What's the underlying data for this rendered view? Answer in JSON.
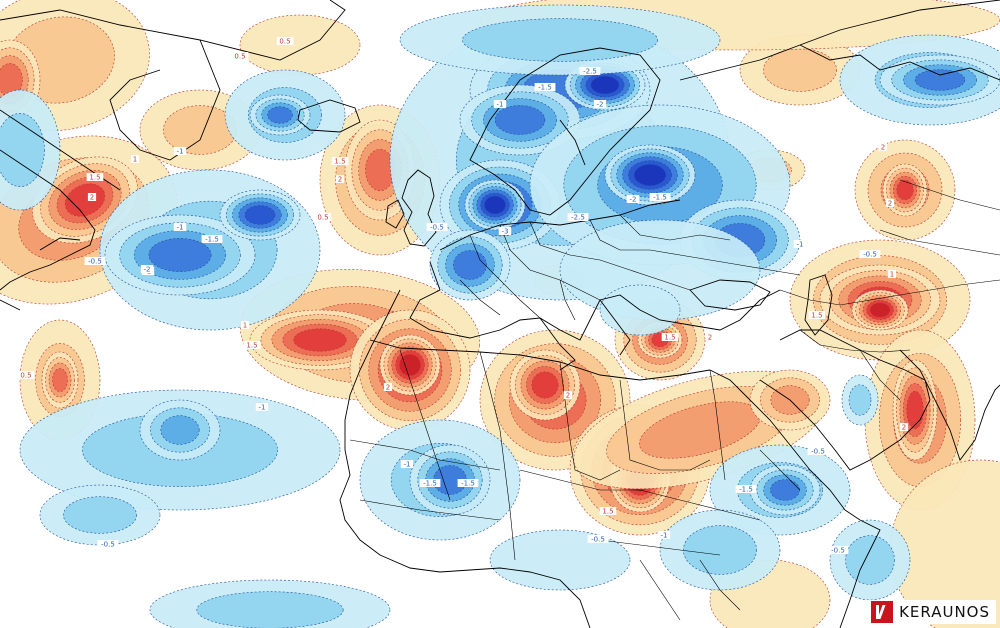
{
  "brand": {
    "name": "KERAUNOS"
  },
  "colors": {
    "pos_05": "#fbe7b8",
    "pos_1": "#f8c690",
    "pos_15": "#f29a6c",
    "pos_2": "#ec6a52",
    "pos_25": "#e13a39",
    "pos_3": "#c92028",
    "neg_05": "#c8ecf7",
    "neg_1": "#8fd2ef",
    "neg_15": "#58a9e6",
    "neg_2": "#3d78dc",
    "neg_25": "#2755cf",
    "neg_3": "#1a33b8",
    "contour_pos": "#b5352d",
    "contour_neg": "#1f4e9a",
    "label_pos": "#c03d35",
    "label_neg": "#2f62b0"
  },
  "contour_labels": [
    {
      "text": "0.5",
      "sign": "pos"
    },
    {
      "text": "1",
      "sign": "pos"
    },
    {
      "text": "1.5",
      "sign": "pos"
    },
    {
      "text": "2",
      "sign": "pos"
    },
    {
      "text": "-1",
      "sign": "neg"
    },
    {
      "text": "-1.5",
      "sign": "neg"
    },
    {
      "text": "-2",
      "sign": "neg"
    },
    {
      "text": "-0.5",
      "sign": "neg"
    },
    {
      "text": "1.5",
      "sign": "pos"
    },
    {
      "text": "2",
      "sign": "pos"
    },
    {
      "text": "0.5",
      "sign": "pos"
    },
    {
      "text": "-0.5",
      "sign": "neg"
    },
    {
      "text": "-1",
      "sign": "neg"
    },
    {
      "text": "-1.5",
      "sign": "neg"
    },
    {
      "text": "-2",
      "sign": "neg"
    },
    {
      "text": "-2.5",
      "sign": "neg"
    },
    {
      "text": "-3",
      "sign": "neg"
    },
    {
      "text": "-2.5",
      "sign": "neg"
    },
    {
      "text": "-2",
      "sign": "neg"
    },
    {
      "text": "-1.5",
      "sign": "neg"
    },
    {
      "text": "-1",
      "sign": "neg"
    },
    {
      "text": "-0.5",
      "sign": "neg"
    },
    {
      "text": "1",
      "sign": "pos"
    },
    {
      "text": "1.5",
      "sign": "pos"
    },
    {
      "text": "2",
      "sign": "pos"
    },
    {
      "text": "2",
      "sign": "pos"
    },
    {
      "text": "1.5",
      "sign": "pos"
    },
    {
      "text": "0.5",
      "sign": "pos"
    },
    {
      "text": "1",
      "sign": "pos"
    },
    {
      "text": "1.5",
      "sign": "pos"
    },
    {
      "text": "2",
      "sign": "pos"
    },
    {
      "text": "2",
      "sign": "pos"
    },
    {
      "text": "2",
      "sign": "pos"
    },
    {
      "text": "-1",
      "sign": "neg"
    },
    {
      "text": "-1",
      "sign": "neg"
    },
    {
      "text": "-1.5",
      "sign": "neg"
    },
    {
      "text": "-1.5",
      "sign": "neg"
    },
    {
      "text": "-0.5",
      "sign": "neg"
    },
    {
      "text": "-0.5",
      "sign": "neg"
    },
    {
      "text": "-1",
      "sign": "neg"
    },
    {
      "text": "-1.5",
      "sign": "neg"
    },
    {
      "text": "-0.5",
      "sign": "neg"
    },
    {
      "text": "-0.5",
      "sign": "neg"
    },
    {
      "text": "2",
      "sign": "pos"
    },
    {
      "text": "1.5",
      "sign": "pos"
    },
    {
      "text": "0.5",
      "sign": "pos"
    },
    {
      "text": "-1",
      "sign": "neg"
    },
    {
      "text": "-2",
      "sign": "neg"
    }
  ]
}
